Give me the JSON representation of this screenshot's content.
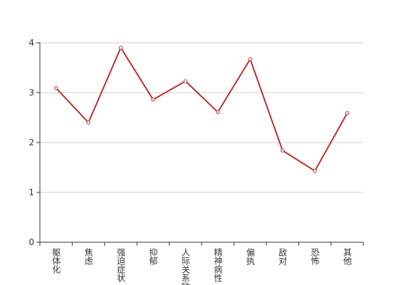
{
  "chart_data": {
    "type": "line",
    "categories": [
      "躯体化",
      "焦虑",
      "强迫症状",
      "抑郁",
      "人际关系敏感",
      "精神病性",
      "偏执",
      "敌对",
      "恐怖",
      "其他"
    ],
    "series": [
      {
        "color": "#b83232",
        "values": [
          3.09,
          2.4,
          3.9,
          2.86,
          3.23,
          2.61,
          3.67,
          1.84,
          1.43,
          2.59
        ]
      }
    ],
    "ylim": [
      0,
      4
    ],
    "yticks": [
      0,
      1,
      2,
      3,
      4
    ],
    "grid": true
  }
}
